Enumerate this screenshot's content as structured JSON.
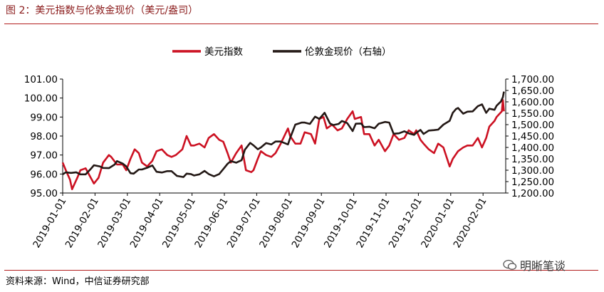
{
  "title": "图 2：美元指数与伦敦金现价（美元/盎司）",
  "source": "资料来源：Wind，中信证券研究部",
  "watermark": "明晰笔谈",
  "colors": {
    "usd": "#cc1122",
    "gold": "#231815",
    "accent": "#b21f1f"
  },
  "chart_data": {
    "type": "line",
    "x_tick_labels": [
      "2019-01-01",
      "2019-02-01",
      "2019-03-01",
      "2019-04-01",
      "2019-05-01",
      "2019-06-01",
      "2019-07-01",
      "2019-08-01",
      "2019-09-01",
      "2019-10-01",
      "2019-11-01",
      "2019-12-01",
      "2020-01-01",
      "2020-02-01"
    ],
    "legend_position": "top-center",
    "y_left": {
      "min": 95,
      "max": 101,
      "ticks": [
        "95.00",
        "96.00",
        "97.00",
        "98.00",
        "99.00",
        "100.00",
        "101.00"
      ]
    },
    "y_right": {
      "min": 1200,
      "max": 1700,
      "ticks": [
        "1,200.00",
        "1,250.00",
        "1,300.00",
        "1,350.00",
        "1,400.00",
        "1,450.00",
        "1,500.00",
        "1,550.00",
        "1,600.00",
        "1,650.00",
        "1,700.00"
      ]
    },
    "series": [
      {
        "name": "美元指数",
        "axis": "left",
        "color": "#cc1122",
        "points": [
          [
            "2019-01-01",
            96.6
          ],
          [
            "2019-01-04",
            96.2
          ],
          [
            "2019-01-08",
            95.7
          ],
          [
            "2019-01-10",
            95.2
          ],
          [
            "2019-01-15",
            95.8
          ],
          [
            "2019-01-18",
            96.2
          ],
          [
            "2019-01-23",
            96.3
          ],
          [
            "2019-01-28",
            95.8
          ],
          [
            "2019-01-31",
            95.5
          ],
          [
            "2019-02-04",
            95.8
          ],
          [
            "2019-02-08",
            96.6
          ],
          [
            "2019-02-13",
            97.0
          ],
          [
            "2019-02-15",
            96.9
          ],
          [
            "2019-02-20",
            96.5
          ],
          [
            "2019-02-25",
            96.5
          ],
          [
            "2019-02-28",
            96.2
          ],
          [
            "2019-03-04",
            96.8
          ],
          [
            "2019-03-08",
            97.3
          ],
          [
            "2019-03-12",
            97.1
          ],
          [
            "2019-03-15",
            96.6
          ],
          [
            "2019-03-20",
            96.4
          ],
          [
            "2019-03-25",
            96.7
          ],
          [
            "2019-03-29",
            97.2
          ],
          [
            "2019-04-03",
            97.3
          ],
          [
            "2019-04-08",
            97.0
          ],
          [
            "2019-04-12",
            96.9
          ],
          [
            "2019-04-16",
            97.0
          ],
          [
            "2019-04-22",
            97.3
          ],
          [
            "2019-04-26",
            98.0
          ],
          [
            "2019-04-30",
            97.5
          ],
          [
            "2019-05-03",
            97.5
          ],
          [
            "2019-05-08",
            97.6
          ],
          [
            "2019-05-13",
            97.4
          ],
          [
            "2019-05-17",
            97.9
          ],
          [
            "2019-05-22",
            98.1
          ],
          [
            "2019-05-27",
            97.8
          ],
          [
            "2019-05-31",
            97.7
          ],
          [
            "2019-06-04",
            97.1
          ],
          [
            "2019-06-07",
            96.6
          ],
          [
            "2019-06-12",
            97.1
          ],
          [
            "2019-06-17",
            97.5
          ],
          [
            "2019-06-21",
            96.2
          ],
          [
            "2019-06-26",
            96.1
          ],
          [
            "2019-06-28",
            96.2
          ],
          [
            "2019-07-02",
            96.8
          ],
          [
            "2019-07-05",
            97.2
          ],
          [
            "2019-07-10",
            97.0
          ],
          [
            "2019-07-15",
            96.9
          ],
          [
            "2019-07-19",
            97.1
          ],
          [
            "2019-07-24",
            97.6
          ],
          [
            "2019-07-31",
            98.4
          ],
          [
            "2019-08-02",
            98.0
          ],
          [
            "2019-08-07",
            97.6
          ],
          [
            "2019-08-12",
            97.6
          ],
          [
            "2019-08-16",
            98.2
          ],
          [
            "2019-08-22",
            98.1
          ],
          [
            "2019-08-26",
            97.6
          ],
          [
            "2019-08-30",
            98.9
          ],
          [
            "2019-09-03",
            99.0
          ],
          [
            "2019-09-06",
            98.4
          ],
          [
            "2019-09-11",
            98.6
          ],
          [
            "2019-09-16",
            98.3
          ],
          [
            "2019-09-20",
            98.4
          ],
          [
            "2019-09-25",
            98.9
          ],
          [
            "2019-09-30",
            99.3
          ],
          [
            "2019-10-02",
            98.9
          ],
          [
            "2019-10-08",
            99.0
          ],
          [
            "2019-10-11",
            98.1
          ],
          [
            "2019-10-16",
            98.1
          ],
          [
            "2019-10-21",
            97.5
          ],
          [
            "2019-10-25",
            97.8
          ],
          [
            "2019-10-31",
            97.2
          ],
          [
            "2019-11-04",
            97.5
          ],
          [
            "2019-11-08",
            98.1
          ],
          [
            "2019-11-13",
            97.8
          ],
          [
            "2019-11-18",
            97.9
          ],
          [
            "2019-11-22",
            98.3
          ],
          [
            "2019-11-27",
            98.1
          ],
          [
            "2019-11-29",
            98.3
          ],
          [
            "2019-12-03",
            97.8
          ],
          [
            "2019-12-06",
            97.6
          ],
          [
            "2019-12-11",
            97.3
          ],
          [
            "2019-12-16",
            97.1
          ],
          [
            "2019-12-20",
            97.6
          ],
          [
            "2019-12-25",
            97.4
          ],
          [
            "2019-12-31",
            96.4
          ],
          [
            "2020-01-03",
            96.8
          ],
          [
            "2020-01-08",
            97.2
          ],
          [
            "2020-01-13",
            97.4
          ],
          [
            "2020-01-17",
            97.5
          ],
          [
            "2020-01-22",
            97.5
          ],
          [
            "2020-01-27",
            97.9
          ],
          [
            "2020-01-31",
            97.4
          ],
          [
            "2020-02-04",
            97.9
          ],
          [
            "2020-02-07",
            98.5
          ],
          [
            "2020-02-12",
            98.8
          ],
          [
            "2020-02-14",
            99.0
          ],
          [
            "2020-02-19",
            99.3
          ],
          [
            "2020-02-20",
            99.9
          ],
          [
            "2020-02-21",
            99.3
          ]
        ]
      },
      {
        "name": "伦敦金现价（右轴）",
        "axis": "right",
        "color": "#231815",
        "points": [
          [
            "2019-01-01",
            1282
          ],
          [
            "2019-01-04",
            1291
          ],
          [
            "2019-01-09",
            1288
          ],
          [
            "2019-01-14",
            1291
          ],
          [
            "2019-01-18",
            1282
          ],
          [
            "2019-01-23",
            1282
          ],
          [
            "2019-01-28",
            1306
          ],
          [
            "2019-01-31",
            1322
          ],
          [
            "2019-02-05",
            1317
          ],
          [
            "2019-02-08",
            1310
          ],
          [
            "2019-02-13",
            1309
          ],
          [
            "2019-02-18",
            1325
          ],
          [
            "2019-02-20",
            1340
          ],
          [
            "2019-02-25",
            1329
          ],
          [
            "2019-02-28",
            1317
          ],
          [
            "2019-03-04",
            1287
          ],
          [
            "2019-03-07",
            1285
          ],
          [
            "2019-03-12",
            1303
          ],
          [
            "2019-03-15",
            1303
          ],
          [
            "2019-03-20",
            1311
          ],
          [
            "2019-03-25",
            1321
          ],
          [
            "2019-03-29",
            1293
          ],
          [
            "2019-04-03",
            1290
          ],
          [
            "2019-04-08",
            1296
          ],
          [
            "2019-04-12",
            1296
          ],
          [
            "2019-04-17",
            1275
          ],
          [
            "2019-04-23",
            1270
          ],
          [
            "2019-04-26",
            1285
          ],
          [
            "2019-04-30",
            1283
          ],
          [
            "2019-05-03",
            1277
          ],
          [
            "2019-05-08",
            1282
          ],
          [
            "2019-05-13",
            1297
          ],
          [
            "2019-05-17",
            1283
          ],
          [
            "2019-05-22",
            1273
          ],
          [
            "2019-05-27",
            1283
          ],
          [
            "2019-05-31",
            1305
          ],
          [
            "2019-06-04",
            1328
          ],
          [
            "2019-06-07",
            1340
          ],
          [
            "2019-06-12",
            1333
          ],
          [
            "2019-06-17",
            1344
          ],
          [
            "2019-06-20",
            1390
          ],
          [
            "2019-06-25",
            1420
          ],
          [
            "2019-06-28",
            1409
          ],
          [
            "2019-07-02",
            1392
          ],
          [
            "2019-07-05",
            1400
          ],
          [
            "2019-07-10",
            1419
          ],
          [
            "2019-07-15",
            1413
          ],
          [
            "2019-07-19",
            1426
          ],
          [
            "2019-07-24",
            1426
          ],
          [
            "2019-07-31",
            1413
          ],
          [
            "2019-08-02",
            1441
          ],
          [
            "2019-08-07",
            1500
          ],
          [
            "2019-08-13",
            1509
          ],
          [
            "2019-08-16",
            1509
          ],
          [
            "2019-08-21",
            1503
          ],
          [
            "2019-08-26",
            1535
          ],
          [
            "2019-08-30",
            1525
          ],
          [
            "2019-09-04",
            1552
          ],
          [
            "2019-09-09",
            1505
          ],
          [
            "2019-09-12",
            1498
          ],
          [
            "2019-09-17",
            1503
          ],
          [
            "2019-09-20",
            1516
          ],
          [
            "2019-09-25",
            1507
          ],
          [
            "2019-09-30",
            1472
          ],
          [
            "2019-10-03",
            1504
          ],
          [
            "2019-10-08",
            1505
          ],
          [
            "2019-10-11",
            1489
          ],
          [
            "2019-10-16",
            1491
          ],
          [
            "2019-10-21",
            1484
          ],
          [
            "2019-10-25",
            1504
          ],
          [
            "2019-10-31",
            1512
          ],
          [
            "2019-11-04",
            1509
          ],
          [
            "2019-11-08",
            1460
          ],
          [
            "2019-11-13",
            1462
          ],
          [
            "2019-11-18",
            1471
          ],
          [
            "2019-11-22",
            1462
          ],
          [
            "2019-11-27",
            1455
          ],
          [
            "2019-11-29",
            1464
          ],
          [
            "2019-12-03",
            1477
          ],
          [
            "2019-12-06",
            1459
          ],
          [
            "2019-12-11",
            1474
          ],
          [
            "2019-12-16",
            1476
          ],
          [
            "2019-12-20",
            1478
          ],
          [
            "2019-12-25",
            1500
          ],
          [
            "2019-12-31",
            1517
          ],
          [
            "2020-01-03",
            1552
          ],
          [
            "2020-01-06",
            1568
          ],
          [
            "2020-01-08",
            1573
          ],
          [
            "2020-01-13",
            1548
          ],
          [
            "2020-01-17",
            1557
          ],
          [
            "2020-01-22",
            1558
          ],
          [
            "2020-01-27",
            1581
          ],
          [
            "2020-01-31",
            1589
          ],
          [
            "2020-02-04",
            1552
          ],
          [
            "2020-02-07",
            1570
          ],
          [
            "2020-02-12",
            1565
          ],
          [
            "2020-02-14",
            1583
          ],
          [
            "2020-02-18",
            1601
          ],
          [
            "2020-02-20",
            1620
          ],
          [
            "2020-02-21",
            1645
          ]
        ]
      }
    ]
  }
}
